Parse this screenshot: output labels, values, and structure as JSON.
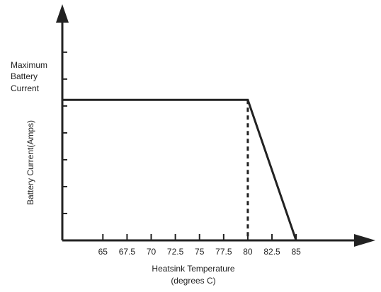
{
  "chart_data": {
    "type": "line",
    "title": "",
    "xlabel_lines": [
      "Heatsink Temperature",
      "(degrees C)"
    ],
    "ylabel": "Battery Current(Amps)",
    "y_annotation_lines": [
      "Maximum",
      "Battery",
      "Current"
    ],
    "x_ticks": [
      "65",
      "67.5",
      "70",
      "72.5",
      "75",
      "77.5",
      "80",
      "82.5",
      "85"
    ],
    "xlim": [
      60.8,
      91
    ],
    "ylim": [
      0,
      1.55
    ],
    "y_tick_count": 7,
    "series": [
      {
        "x": [
          60.8,
          80,
          85
        ],
        "y": [
          1,
          1,
          0
        ]
      }
    ],
    "reference_line": {
      "x": 80,
      "y_from": 0,
      "y_to": 1,
      "style": "dashed"
    },
    "grid": false,
    "legend": "none",
    "colors": {
      "line": "#222222",
      "axis": "#222222",
      "text": "#222222"
    }
  }
}
